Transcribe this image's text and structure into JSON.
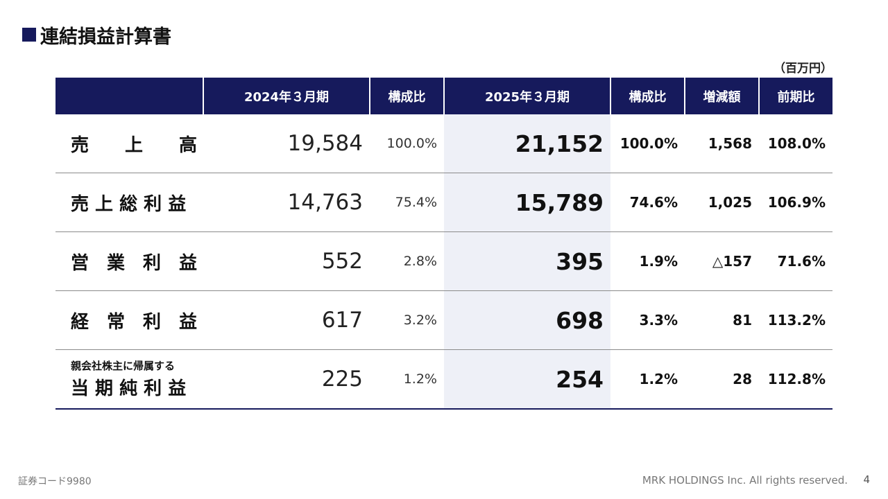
{
  "title": "連結損益計算書",
  "unit": "（百万円）",
  "table": {
    "headers": [
      "",
      "2024年３月期",
      "構成比",
      "2025年３月期",
      "構成比",
      "増減額",
      "前期比"
    ],
    "rows": [
      {
        "label_sub": "",
        "label": "売　　上　　高",
        "prev": "19,584",
        "prev_pct": "100.0%",
        "curr": "21,152",
        "curr_pct": "100.0%",
        "diff": "1,568",
        "ratio": "108.0%"
      },
      {
        "label_sub": "",
        "label": "売 上 総 利 益",
        "prev": "14,763",
        "prev_pct": "75.4%",
        "curr": "15,789",
        "curr_pct": "74.6%",
        "diff": "1,025",
        "ratio": "106.9%"
      },
      {
        "label_sub": "",
        "label": "営　業　利　益",
        "prev": "552",
        "prev_pct": "2.8%",
        "curr": "395",
        "curr_pct": "1.9%",
        "diff": "△157",
        "ratio": "71.6%"
      },
      {
        "label_sub": "",
        "label": "経　常　利　益",
        "prev": "617",
        "prev_pct": "3.2%",
        "curr": "698",
        "curr_pct": "3.3%",
        "diff": "81",
        "ratio": "113.2%"
      },
      {
        "label_sub": "親会社株主に帰属する",
        "label": "当 期 純 利 益",
        "prev": "225",
        "prev_pct": "1.2%",
        "curr": "254",
        "curr_pct": "1.2%",
        "diff": "28",
        "ratio": "112.8%"
      }
    ]
  },
  "footer": {
    "security_code": "証券コード9980",
    "copyright": "MRK HOLDINGS Inc. All rights reserved.",
    "page_number": "4"
  },
  "colors": {
    "header_bg": "#161a5c",
    "highlight_col": "#eef0f7",
    "text": "#111111"
  }
}
